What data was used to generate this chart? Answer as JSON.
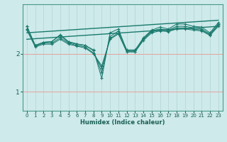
{
  "xlabel": "Humidex (Indice chaleur)",
  "background_color": "#ceeaea",
  "grid_color_v": "#b8d8d8",
  "grid_color_h": "#e8a0a0",
  "line_color": "#1a7a6e",
  "xlim": [
    -0.5,
    23.5
  ],
  "ylim": [
    0.5,
    3.3
  ],
  "xticks": [
    0,
    1,
    2,
    3,
    4,
    5,
    6,
    7,
    8,
    9,
    10,
    11,
    12,
    13,
    14,
    15,
    16,
    17,
    18,
    19,
    20,
    21,
    22,
    23
  ],
  "yticks": [
    1,
    2
  ],
  "series": [
    {
      "x": [
        0,
        1,
        2,
        3,
        4,
        5,
        6,
        7,
        8,
        9,
        10,
        11,
        12,
        13,
        14,
        15,
        16,
        17,
        18,
        19,
        20,
        21,
        22,
        23
      ],
      "y": [
        2.72,
        2.22,
        2.3,
        2.32,
        2.5,
        2.32,
        2.26,
        2.22,
        2.1,
        1.35,
        2.55,
        2.65,
        2.08,
        2.08,
        2.42,
        2.62,
        2.7,
        2.65,
        2.78,
        2.78,
        2.72,
        2.7,
        2.55,
        2.82
      ]
    },
    {
      "x": [
        0,
        1,
        2,
        3,
        4,
        5,
        6,
        7,
        8,
        9,
        10,
        11,
        12,
        13,
        14,
        15,
        16,
        17,
        18,
        19,
        20,
        21,
        22,
        23
      ],
      "y": [
        2.72,
        2.22,
        2.3,
        2.32,
        2.48,
        2.3,
        2.25,
        2.22,
        2.08,
        1.5,
        2.45,
        2.6,
        2.1,
        2.1,
        2.4,
        2.6,
        2.65,
        2.62,
        2.72,
        2.72,
        2.68,
        2.65,
        2.52,
        2.78
      ]
    },
    {
      "x": [
        0,
        1,
        2,
        3,
        4,
        5,
        6,
        7,
        8,
        9,
        10,
        11,
        12,
        13,
        14,
        15,
        16,
        17,
        18,
        19,
        20,
        21,
        22,
        23
      ],
      "y": [
        2.65,
        2.2,
        2.28,
        2.28,
        2.42,
        2.28,
        2.22,
        2.18,
        2.02,
        1.62,
        2.4,
        2.55,
        2.05,
        2.05,
        2.38,
        2.58,
        2.62,
        2.6,
        2.68,
        2.68,
        2.65,
        2.62,
        2.5,
        2.75
      ]
    },
    {
      "x": [
        0,
        1,
        2,
        3,
        4,
        5,
        6,
        7,
        8,
        9,
        10,
        11,
        12,
        13,
        14,
        15,
        16,
        17,
        18,
        19,
        20,
        21,
        22,
        23
      ],
      "y": [
        2.62,
        2.18,
        2.25,
        2.25,
        2.38,
        2.25,
        2.2,
        2.15,
        2.0,
        1.68,
        2.38,
        2.52,
        2.05,
        2.05,
        2.35,
        2.55,
        2.6,
        2.58,
        2.65,
        2.65,
        2.62,
        2.6,
        2.48,
        2.72
      ]
    }
  ],
  "trend_lines": [
    {
      "x": [
        0,
        23
      ],
      "y": [
        2.38,
        2.72
      ]
    },
    {
      "x": [
        0,
        23
      ],
      "y": [
        2.55,
        2.88
      ]
    }
  ]
}
